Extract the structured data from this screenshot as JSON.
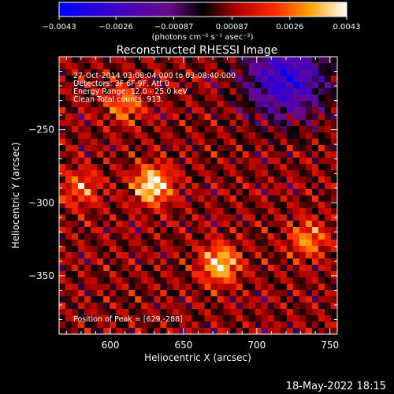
{
  "chart_data": {
    "type": "heatmap",
    "title": "Reconstructed RHESSI Image",
    "xlabel": "Heliocentric X (arcsec)",
    "ylabel": "Heliocentric Y (arcsec)",
    "xlim": [
      565,
      755
    ],
    "ylim": [
      -390,
      -200
    ],
    "x_ticks": [
      600,
      650,
      700,
      750
    ],
    "x_tick_labels": [
      "600",
      "650",
      "700",
      "750"
    ],
    "y_ticks": [
      -250,
      -300,
      -350
    ],
    "y_tick_labels": [
      "−250",
      "−300",
      "−350"
    ],
    "colorbar": {
      "min": -0.0043,
      "max": 0.0043,
      "ticks": [
        -0.0043,
        -0.0026,
        -0.00087,
        0.00087,
        0.0026,
        0.0043
      ],
      "tick_labels": [
        "−0.0043",
        "−0.0026",
        "−0.00087",
        "0.00087",
        "0.0026",
        "0.0043"
      ],
      "label": "(photons cm⁻² s⁻¹ asec⁻²)"
    },
    "annotations": [
      "27-Oct-2014 03:08:04.000 to 03:08:40.000",
      "Detectors: 3F 6F 9F, Att 0",
      "Energy Range: 12.0 - 25.0 keV",
      "Clean    Total counts: 913."
    ],
    "peak_label": "Position of Peak = [629,-288]",
    "bright_sources": [
      {
        "x": 629,
        "y": -288,
        "intensity": 1.0
      },
      {
        "x": 675,
        "y": -342,
        "intensity": 0.9
      },
      {
        "x": 610,
        "y": -233,
        "intensity": 0.55
      },
      {
        "x": 735,
        "y": -325,
        "intensity": 0.6
      },
      {
        "x": 580,
        "y": -290,
        "intensity": 0.5
      }
    ],
    "dark_region": {
      "x": 720,
      "y": -215
    }
  },
  "footer": {
    "timestamp": "18-May-2022 18:15"
  }
}
